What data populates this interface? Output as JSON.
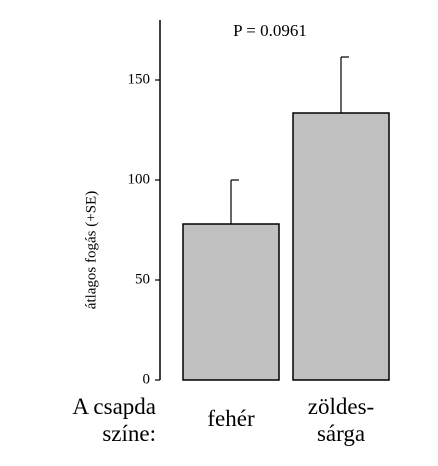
{
  "chart_data": {
    "type": "bar",
    "annotation": "P = 0.0961",
    "ylabel": "átlagos fogás (+SE)",
    "xlabel": "A csapda\nszíne:",
    "categories": [
      "fehér",
      "zöldes-\nsárga"
    ],
    "values": [
      78,
      133.5
    ],
    "errors": [
      22,
      28
    ],
    "color": "#c0c0c0",
    "ylim": [
      0,
      180
    ],
    "yticks": [
      0,
      50,
      100,
      150
    ]
  }
}
